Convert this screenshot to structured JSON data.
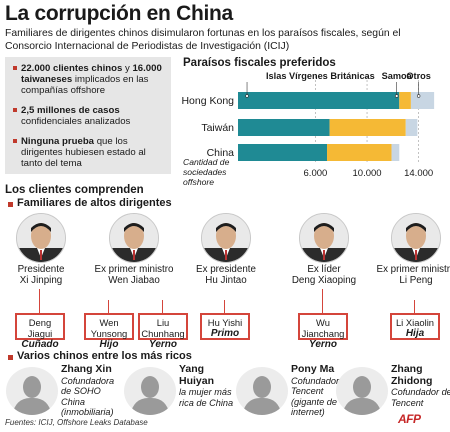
{
  "title": "La corrupción en China",
  "subtitle": "Familiares de dirigentes chinos disimularon fortunas en los paraísos fiscales, según el Consorcio Internacional de Periodistas de Investigación (ICIJ)",
  "facts": [
    {
      "highlight": "22.000 clientes chinos",
      "text": " y ",
      "highlight2": "16.000 taiwaneses",
      "text2": " implicados en las compañías offshore"
    },
    {
      "highlight": "2,5 millones de casos",
      "text": " confidenciales analizados"
    },
    {
      "highlight": "Ninguna prueba",
      "text": " que los dirigentes hubiesen estado al tanto del tema"
    }
  ],
  "chart_data": {
    "type": "bar",
    "orientation": "horizontal",
    "stacked": true,
    "title": "Paraísos fiscales preferidos",
    "categories": [
      "Hong Kong",
      "Taiwán",
      "China"
    ],
    "series": [
      {
        "name": "Islas Vírgenes Británicas",
        "color": "#1f8a94",
        "values": [
          12500,
          7100,
          6900
        ]
      },
      {
        "name": "Samoa",
        "color": "#f5b935",
        "values": [
          900,
          5900,
          5000
        ]
      },
      {
        "name": "Otros",
        "color": "#c8d6e3",
        "values": [
          1800,
          900,
          600
        ]
      }
    ],
    "xlabel": "Cantidad de sociedades offshore",
    "xticks": [
      "6.000",
      "10.000",
      "14.000"
    ],
    "xtick_values": [
      6000,
      10000,
      14000
    ],
    "xlim": [
      0,
      15500
    ],
    "grid": true
  },
  "clients_heading": "Los clientes comprenden",
  "family_heading": "Familiares de altos dirigentes",
  "leaders": [
    {
      "role": "Presidente",
      "name": "Xi Jinping",
      "relative": "Deng Jiagui",
      "relation": "Cuñado"
    },
    {
      "role": "Ex primer ministro",
      "name": "Wen Jiabao",
      "relative": "Wen Yunsong",
      "relation": "Hijo",
      "relative2": "Liu Chunhang",
      "relation2": "Yerno"
    },
    {
      "role": "Ex presidente",
      "name": "Hu Jintao",
      "relative": "Hu Yishi",
      "relation": "Primo"
    },
    {
      "role": "Ex líder",
      "name": "Deng Xiaoping",
      "relative": "Wu Jianchang",
      "relation": "Yerno"
    },
    {
      "role": "Ex primer ministro",
      "name": "Li Peng",
      "relative": "Li Xiaolin",
      "relation": "Hija"
    }
  ],
  "rich_heading": "Varios chinos entre los más ricos",
  "tycoons": [
    {
      "name": "Zhang Xin",
      "desc": "Cofundadora de SOHO China (inmobiliaria)"
    },
    {
      "name": "Yang Huiyan",
      "desc": "la mujer más rica de China"
    },
    {
      "name": "Pony Ma",
      "desc": "Cofundador de Tencent (gigante de internet)"
    },
    {
      "name": "Zhang Zhidong",
      "desc": "Cofundador de Tencent"
    }
  ],
  "source": "Fuentes: ICIJ, Offshore Leaks Database",
  "logo": "AFP",
  "colors": {
    "accent": "#c0392b",
    "teal": "#1f8a94",
    "gold": "#f5b935",
    "light": "#c8d6e3"
  }
}
